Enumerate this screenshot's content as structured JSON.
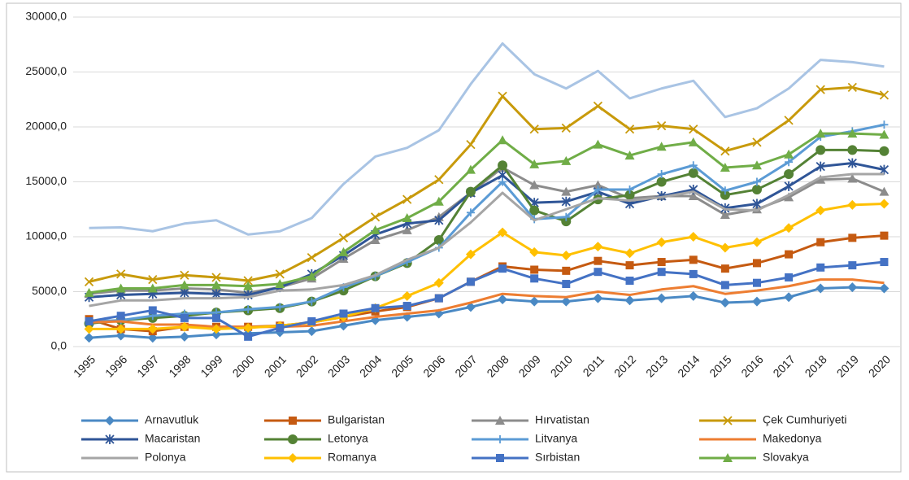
{
  "chart_data": {
    "type": "line",
    "categories": [
      "1995",
      "1996",
      "1997",
      "1998",
      "1999",
      "2000",
      "2001",
      "2002",
      "2003",
      "2004",
      "2005",
      "2006",
      "2007",
      "2008",
      "2009",
      "2010",
      "2011",
      "2012",
      "2013",
      "2014",
      "2015",
      "2016",
      "2017",
      "2018",
      "2019",
      "2020"
    ],
    "ylim": [
      0,
      30000
    ],
    "yticks": [
      {
        "value": 0,
        "label": "0,0"
      },
      {
        "value": 5000,
        "label": "5000,0"
      },
      {
        "value": 10000,
        "label": "10000,0"
      },
      {
        "value": 15000,
        "label": "15000,0"
      },
      {
        "value": 20000,
        "label": "20000,0"
      },
      {
        "value": 25000,
        "label": "25000,0"
      },
      {
        "value": 30000,
        "label": "30000,0"
      }
    ],
    "grid": true,
    "legend": "bottom",
    "series": [
      {
        "name": "Arnavutluk",
        "color": "#4a89c4",
        "marker": "diamond",
        "values": [
          800,
          1000,
          800,
          900,
          1100,
          1200,
          1300,
          1400,
          1900,
          2400,
          2700,
          3000,
          3600,
          4300,
          4100,
          4100,
          4400,
          4200,
          4400,
          4600,
          4000,
          4100,
          4500,
          5300,
          5400,
          5300
        ]
      },
      {
        "name": "Bulgaristan",
        "color": "#c55a11",
        "marker": "square",
        "values": [
          2500,
          1600,
          1400,
          1800,
          1800,
          1800,
          1900,
          2200,
          2700,
          3200,
          3600,
          4400,
          5900,
          7300,
          7000,
          6900,
          7800,
          7400,
          7700,
          7900,
          7100,
          7600,
          8400,
          9500,
          9900,
          10100
        ]
      },
      {
        "name": "Hırvatistan",
        "color": "#8c8c8c",
        "marker": "triangle",
        "values": [
          4800,
          5100,
          5100,
          5300,
          5200,
          4900,
          5400,
          6200,
          8000,
          9700,
          10600,
          11800,
          14000,
          16300,
          14700,
          14100,
          14700,
          13500,
          13700,
          13700,
          12000,
          12500,
          13600,
          15200,
          15300,
          14100
        ]
      },
      {
        "name": "Çek Cumhuriyeti",
        "color": "#c89a0b",
        "marker": "x",
        "values": [
          5900,
          6600,
          6100,
          6500,
          6300,
          6000,
          6600,
          8100,
          9900,
          11800,
          13400,
          15200,
          18400,
          22800,
          19800,
          19900,
          21900,
          19800,
          20100,
          19800,
          17800,
          18600,
          20600,
          23400,
          23600,
          22900
        ]
      },
      {
        "name": "Macaristan",
        "color": "#2f5597",
        "marker": "star",
        "values": [
          4500,
          4700,
          4800,
          4900,
          4800,
          4700,
          5400,
          6600,
          8300,
          10200,
          11200,
          11500,
          14000,
          15600,
          13100,
          13200,
          14100,
          13000,
          13700,
          14300,
          12600,
          13000,
          14600,
          16400,
          16700,
          16100
        ]
      },
      {
        "name": "Letonya",
        "color": "#548235",
        "marker": "circle",
        "values": [
          2100,
          2400,
          2600,
          2800,
          3100,
          3300,
          3500,
          4100,
          5100,
          6400,
          7600,
          9700,
          14100,
          16500,
          12400,
          11400,
          13400,
          13800,
          15000,
          15800,
          13800,
          14300,
          15700,
          17900,
          17900,
          17800
        ]
      },
      {
        "name": "Litvanya",
        "color": "#5b9bd5",
        "marker": "plus",
        "values": [
          2300,
          2400,
          2800,
          3000,
          3100,
          3400,
          3600,
          4100,
          5400,
          6400,
          7700,
          9000,
          12200,
          15000,
          11600,
          11800,
          14300,
          14300,
          15700,
          16500,
          14200,
          15000,
          16800,
          19100,
          19600,
          20200
        ]
      },
      {
        "name": "Makedonya",
        "color": "#ed7d31",
        "marker": "none",
        "values": [
          2200,
          2300,
          2000,
          2000,
          1800,
          1800,
          1800,
          1900,
          2300,
          2700,
          3000,
          3300,
          4000,
          4800,
          4600,
          4500,
          5000,
          4700,
          5200,
          5500,
          4800,
          5100,
          5500,
          6100,
          6100,
          5800
        ]
      },
      {
        "name": "Polonya",
        "color": "#a5a5a5",
        "marker": "none",
        "values": [
          3700,
          4200,
          4200,
          4400,
          4400,
          4500,
          5100,
          5200,
          5600,
          6500,
          7900,
          9000,
          11300,
          14000,
          11500,
          12500,
          13500,
          13300,
          13600,
          14100,
          12500,
          12400,
          13800,
          15400,
          15700,
          15700
        ]
      },
      {
        "name": "Romanya",
        "color": "#ffc000",
        "marker": "diamond",
        "values": [
          1600,
          1600,
          1600,
          1800,
          1600,
          1700,
          1900,
          2200,
          2700,
          3500,
          4600,
          5800,
          8400,
          10400,
          8600,
          8300,
          9100,
          8500,
          9500,
          10000,
          9000,
          9500,
          10800,
          12400,
          12900,
          13000
        ]
      },
      {
        "name": "Sırbistan",
        "color": "#4472c4",
        "marker": "square",
        "values": [
          2300,
          2800,
          3300,
          2600,
          2600,
          900,
          1700,
          2300,
          3000,
          3500,
          3700,
          4400,
          5900,
          7100,
          6200,
          5700,
          6800,
          6000,
          6800,
          6600,
          5600,
          5800,
          6300,
          7200,
          7400,
          7700
        ]
      },
      {
        "name": "Slovakya",
        "color": "#70ad47",
        "marker": "triangle",
        "values": [
          4900,
          5300,
          5300,
          5600,
          5600,
          5500,
          5700,
          6400,
          8600,
          10600,
          11700,
          13200,
          16100,
          18800,
          16600,
          16900,
          18400,
          17400,
          18200,
          18600,
          16300,
          16500,
          17500,
          19400,
          19400,
          19300
        ]
      },
      {
        "color": "#a9c4e4",
        "marker": "none",
        "values": [
          10800,
          10850,
          10500,
          11200,
          11500,
          10200,
          10500,
          11700,
          14800,
          17300,
          18100,
          19700,
          23900,
          27600,
          24800,
          23500,
          25100,
          22600,
          23500,
          24200,
          20900,
          21700,
          23500,
          26100,
          25900,
          25500
        ]
      }
    ]
  }
}
